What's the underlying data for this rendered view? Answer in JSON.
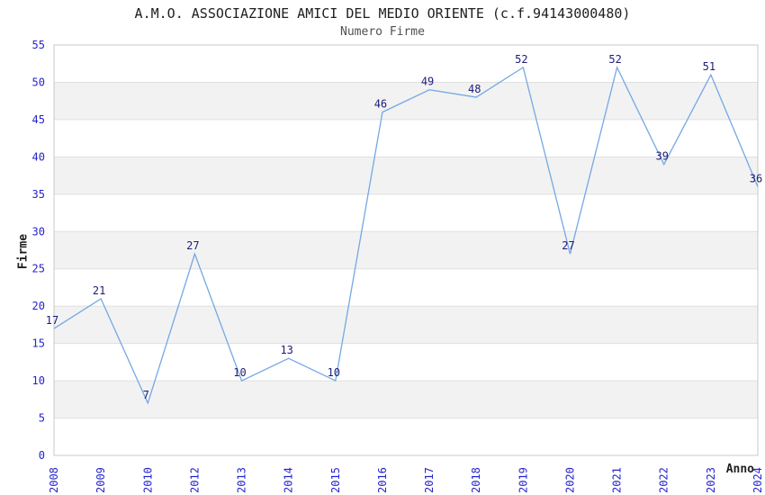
{
  "chart": {
    "title": "A.M.O. ASSOCIAZIONE AMICI DEL MEDIO ORIENTE (c.f.94143000480)",
    "subtitle": "Numero Firme",
    "ylabel": "Firme",
    "xlabel": "Anno"
  },
  "chart_data": {
    "type": "line",
    "title": "A.M.O. ASSOCIAZIONE AMICI DEL MEDIO ORIENTE (c.f.94143000480)",
    "subtitle": "Numero Firme",
    "xlabel": "Anno",
    "ylabel": "Firme",
    "categories": [
      "2008",
      "2009",
      "2010",
      "2012",
      "2013",
      "2014",
      "2015",
      "2016",
      "2017",
      "2018",
      "2019",
      "2020",
      "2021",
      "2022",
      "2023",
      "2024"
    ],
    "values": [
      17,
      21,
      7,
      27,
      10,
      13,
      10,
      46,
      49,
      48,
      52,
      27,
      52,
      39,
      51,
      36
    ],
    "data_labels_shown": true,
    "ylim": [
      0,
      55
    ],
    "yticks": [
      0,
      5,
      10,
      15,
      20,
      25,
      30,
      35,
      40,
      45,
      50,
      55
    ],
    "grid": "horizontal-alternating-bands",
    "gray_bands": [
      [
        5,
        10
      ],
      [
        15,
        20
      ],
      [
        25,
        30
      ],
      [
        35,
        40
      ],
      [
        45,
        50
      ]
    ],
    "legend": "none",
    "colors": {
      "line": "#74a8e4",
      "tick_label": "#2424cc",
      "data_label": "#1c1c78",
      "band_fill": "#f2f2f2",
      "gridline": "#e0e0e0",
      "plot_border": "#c8c8c8",
      "title": "#202020",
      "subtitle": "#505050",
      "axis_label": "#202020",
      "background": "#ffffff"
    }
  }
}
